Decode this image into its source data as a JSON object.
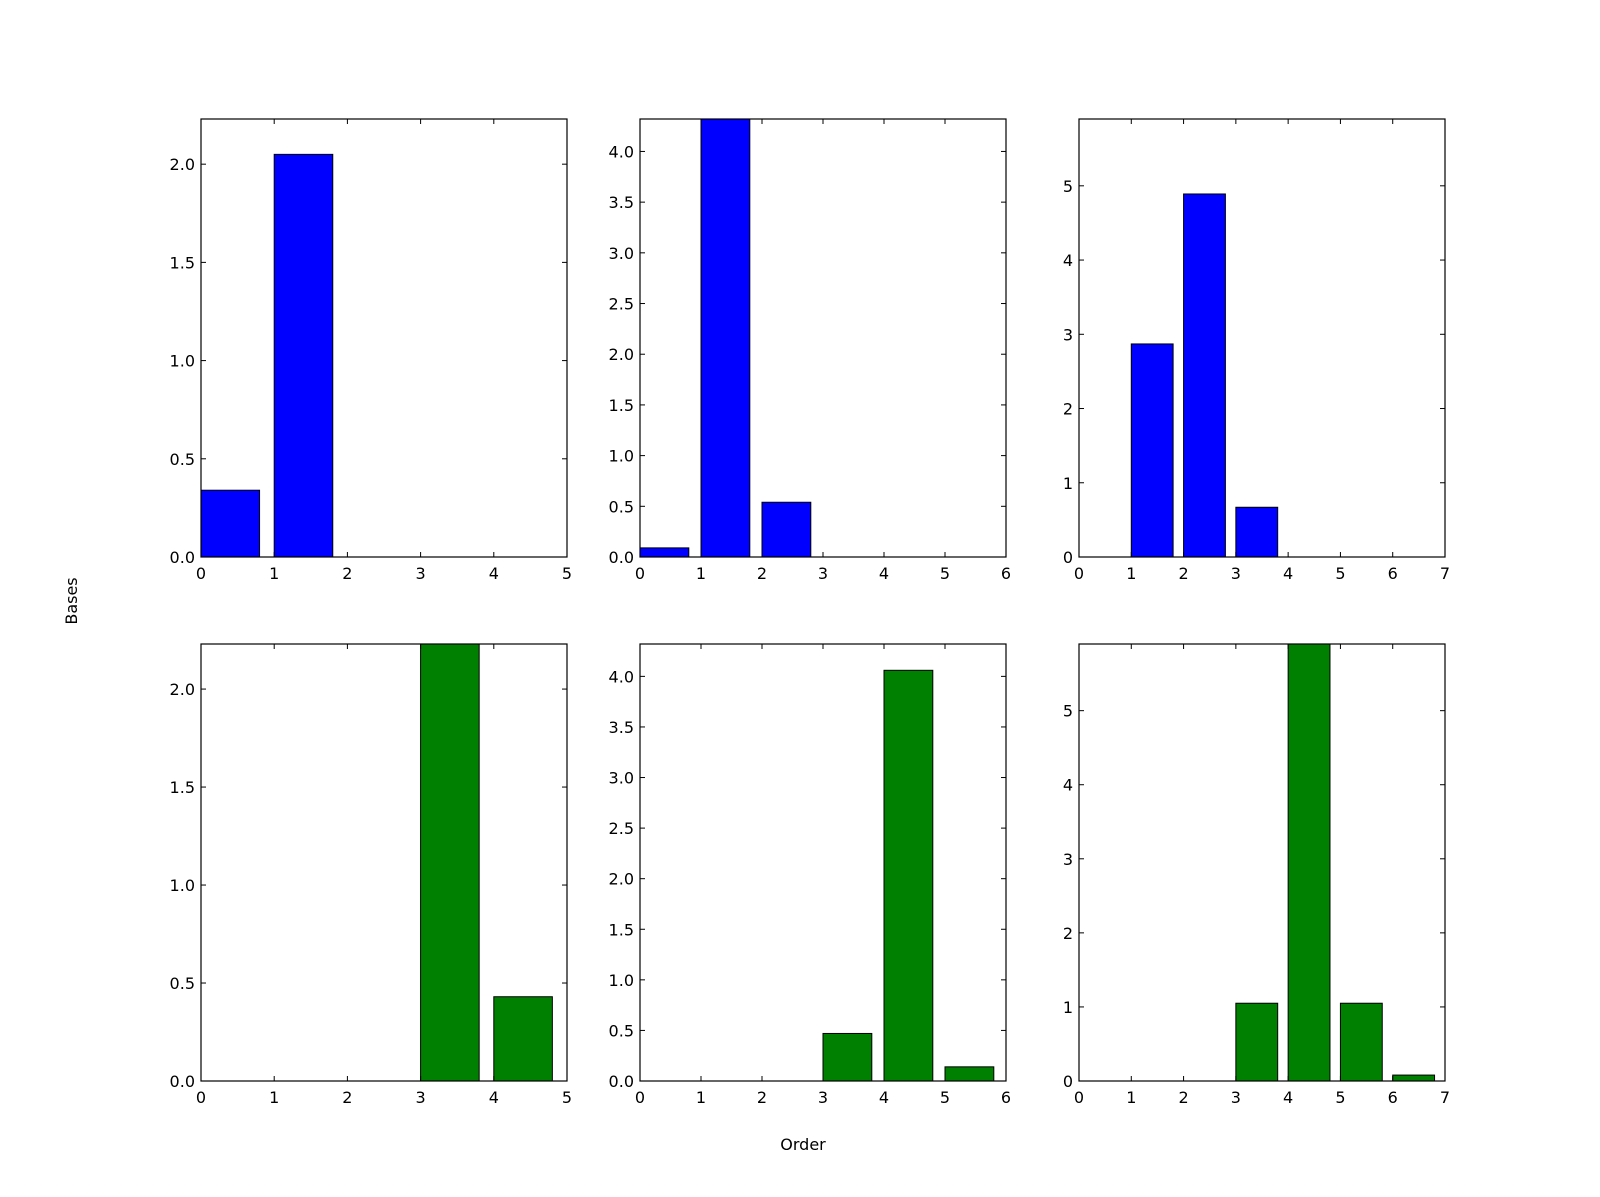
{
  "figure": {
    "xlabel": "Order",
    "ylabel": "Bases"
  },
  "chart_data": [
    {
      "type": "bar",
      "color": "#0000ff",
      "x": [
        0,
        1,
        2,
        3,
        4
      ],
      "values": [
        0.34,
        2.05,
        0.0,
        0.0,
        0.0
      ],
      "bar_width": 0.8,
      "xlim": [
        0,
        5
      ],
      "ylim": [
        0,
        2.23
      ],
      "xticks": [
        "0",
        "1",
        "2",
        "3",
        "4",
        "5"
      ],
      "yticks": [
        "0.0",
        "0.5",
        "1.0",
        "1.5",
        "2.0"
      ],
      "ytick_values": [
        0,
        0.5,
        1.0,
        1.5,
        2.0
      ],
      "xlabel": "",
      "ylabel": "",
      "grid": false
    },
    {
      "type": "bar",
      "color": "#0000ff",
      "x": [
        0,
        1,
        2,
        3,
        4,
        5
      ],
      "values": [
        0.09,
        4.32,
        0.54,
        0.0,
        0.0,
        0.0
      ],
      "bar_width": 0.8,
      "xlim": [
        0,
        6
      ],
      "ylim": [
        0,
        4.32
      ],
      "xticks": [
        "0",
        "1",
        "2",
        "3",
        "4",
        "5",
        "6"
      ],
      "yticks": [
        "0.0",
        "0.5",
        "1.0",
        "1.5",
        "2.0",
        "2.5",
        "3.0",
        "3.5",
        "4.0"
      ],
      "ytick_values": [
        0,
        0.5,
        1.0,
        1.5,
        2.0,
        2.5,
        3.0,
        3.5,
        4.0
      ],
      "xlabel": "",
      "ylabel": "",
      "grid": false
    },
    {
      "type": "bar",
      "color": "#0000ff",
      "x": [
        0,
        1,
        2,
        3,
        4,
        5,
        6
      ],
      "values": [
        0.0,
        2.87,
        4.89,
        0.67,
        0.0,
        0.0,
        0.0
      ],
      "bar_width": 0.8,
      "xlim": [
        0,
        7
      ],
      "ylim": [
        0,
        5.9
      ],
      "xticks": [
        "0",
        "1",
        "2",
        "3",
        "4",
        "5",
        "6",
        "7"
      ],
      "yticks": [
        "0",
        "1",
        "2",
        "3",
        "4",
        "5"
      ],
      "ytick_values": [
        0,
        1,
        2,
        3,
        4,
        5
      ],
      "xlabel": "",
      "ylabel": "",
      "grid": false
    },
    {
      "type": "bar",
      "color": "#008000",
      "x": [
        0,
        1,
        2,
        3,
        4
      ],
      "values": [
        0.0,
        0.0,
        0.0,
        2.23,
        0.43
      ],
      "bar_width": 0.8,
      "xlim": [
        0,
        5
      ],
      "ylim": [
        0,
        2.23
      ],
      "xticks": [
        "0",
        "1",
        "2",
        "3",
        "4",
        "5"
      ],
      "yticks": [
        "0.0",
        "0.5",
        "1.0",
        "1.5",
        "2.0"
      ],
      "ytick_values": [
        0,
        0.5,
        1.0,
        1.5,
        2.0
      ],
      "xlabel": "",
      "ylabel": "",
      "grid": false
    },
    {
      "type": "bar",
      "color": "#008000",
      "x": [
        0,
        1,
        2,
        3,
        4,
        5
      ],
      "values": [
        0.0,
        0.0,
        0.0,
        0.47,
        4.06,
        0.14
      ],
      "bar_width": 0.8,
      "xlim": [
        0,
        6
      ],
      "ylim": [
        0,
        4.32
      ],
      "xticks": [
        "0",
        "1",
        "2",
        "3",
        "4",
        "5",
        "6"
      ],
      "yticks": [
        "0.0",
        "0.5",
        "1.0",
        "1.5",
        "2.0",
        "2.5",
        "3.0",
        "3.5",
        "4.0"
      ],
      "ytick_values": [
        0,
        0.5,
        1.0,
        1.5,
        2.0,
        2.5,
        3.0,
        3.5,
        4.0
      ],
      "xlabel": "",
      "ylabel": "",
      "grid": false
    },
    {
      "type": "bar",
      "color": "#008000",
      "x": [
        0,
        1,
        2,
        3,
        4,
        5,
        6
      ],
      "values": [
        0.0,
        0.0,
        0.0,
        1.05,
        5.9,
        1.05,
        0.08
      ],
      "bar_width": 0.8,
      "xlim": [
        0,
        7
      ],
      "ylim": [
        0,
        5.9
      ],
      "xticks": [
        "0",
        "1",
        "2",
        "3",
        "4",
        "5",
        "6",
        "7"
      ],
      "yticks": [
        "0",
        "1",
        "2",
        "3",
        "4",
        "5"
      ],
      "ytick_values": [
        0,
        1,
        2,
        3,
        4,
        5
      ],
      "xlabel": "",
      "ylabel": "",
      "grid": false
    }
  ]
}
